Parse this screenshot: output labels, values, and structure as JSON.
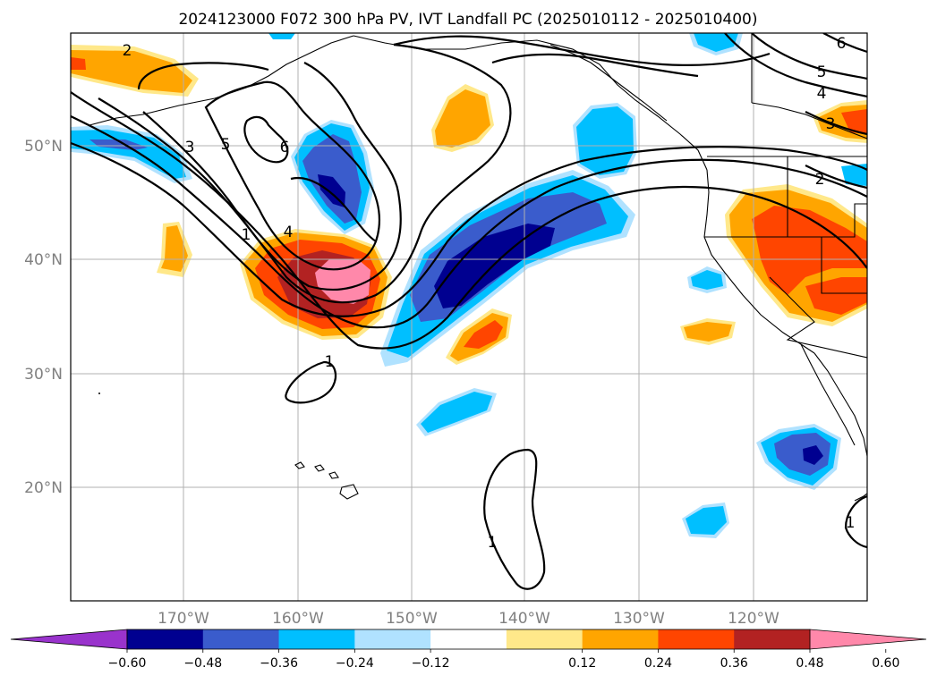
{
  "title": "2024123000 F072 300 hPa PV, IVT Landfall PC (2025010112 - 2025010400)",
  "lat_labels": [
    "50°N",
    "40°N",
    "30°N",
    "20°N"
  ],
  "lon_labels": [
    "170°W",
    "160°W",
    "150°W",
    "140°W",
    "130°W",
    "120°W"
  ],
  "contour_labels": [
    "2",
    "3",
    "5",
    "6",
    "1",
    "4",
    "1",
    "1",
    "1",
    "2",
    "3",
    "4",
    "5",
    "6"
  ],
  "colorbar": {
    "ticks": [
      "−0.60",
      "−0.48",
      "−0.36",
      "−0.24",
      "−0.12",
      "0.12",
      "0.24",
      "0.36",
      "0.48",
      "0.60"
    ],
    "colors": [
      "#9933cc",
      "#000090",
      "#3a5ccc",
      "#00bfff",
      "#b0e2ff",
      "#ffffff",
      "#ffe88a",
      "#ffa500",
      "#ff4500",
      "#b22222",
      "#ff88aa"
    ]
  },
  "colors": {
    "neg_060": "#000090",
    "neg_048": "#3a5ccc",
    "neg_036": "#00bfff",
    "neg_024": "#b0e2ff",
    "pos_024": "#ffe88a",
    "pos_036": "#ffa500",
    "pos_048": "#ff4500",
    "pos_060": "#b22222",
    "pos_max": "#ff88aa"
  }
}
